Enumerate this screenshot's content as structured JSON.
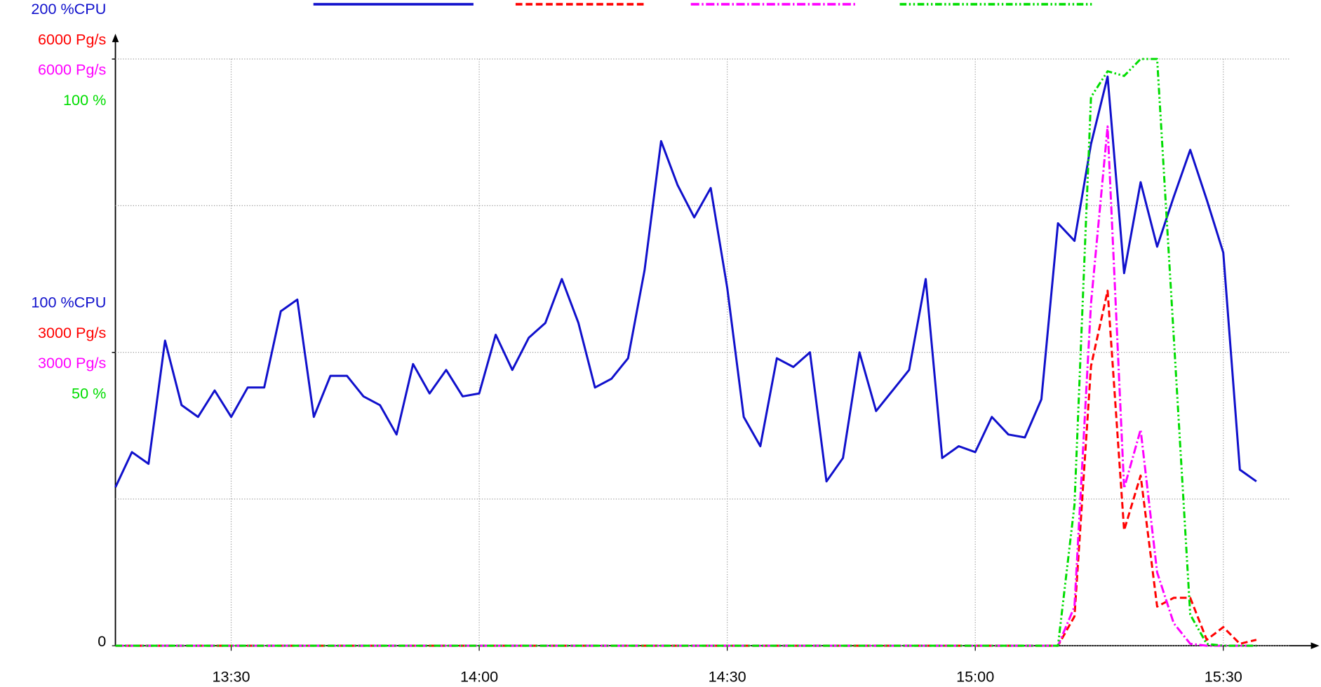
{
  "chart_data": {
    "type": "line",
    "x": [
      796,
      798,
      800,
      802,
      804,
      806,
      808,
      810,
      812,
      814,
      816,
      818,
      820,
      822,
      824,
      826,
      828,
      830,
      832,
      834,
      836,
      838,
      840,
      842,
      844,
      846,
      848,
      850,
      852,
      854,
      856,
      858,
      860,
      862,
      864,
      866,
      868,
      870,
      872,
      874,
      876,
      878,
      880,
      882,
      884,
      886,
      888,
      890,
      892,
      894,
      896,
      898,
      900,
      902,
      904,
      906,
      908,
      910,
      912,
      914,
      916,
      918,
      920,
      922,
      924,
      926,
      928,
      930,
      932,
      934
    ],
    "xlim": [
      796,
      941
    ],
    "xticks": [
      {
        "value": 810,
        "label": "13:30"
      },
      {
        "value": 840,
        "label": "14:00"
      },
      {
        "value": 870,
        "label": "14:30"
      },
      {
        "value": 900,
        "label": "15:00"
      },
      {
        "value": 930,
        "label": "15:30"
      }
    ],
    "grid": true,
    "y_axes": [
      {
        "ylim": [
          0,
          200
        ],
        "yticks": [
          0,
          {
            "value": 100,
            "label": "100 %CPU"
          },
          {
            "value": 200,
            "label": "200 %CPU"
          }
        ],
        "ygrid": [
          0,
          50,
          100,
          150,
          200
        ]
      },
      {
        "ylim": [
          0,
          6000
        ],
        "yticks": [
          {
            "value": 3000,
            "label": "3000 Pg/s"
          },
          {
            "value": 6000,
            "label": "6000 Pg/s"
          }
        ]
      },
      {
        "ylim": [
          0,
          6000
        ],
        "yticks": [
          {
            "value": 3000,
            "label": "3000 Pg/s"
          },
          {
            "value": 6000,
            "label": "6000 Pg/s"
          }
        ]
      },
      {
        "ylim": [
          0,
          100
        ],
        "yticks": [
          {
            "value": 50,
            "label": "50 %"
          },
          {
            "value": 100,
            "label": "100 %"
          }
        ]
      }
    ],
    "series": [
      {
        "color": "#1010cc",
        "dash": "none",
        "axis": 0,
        "values": [
          54,
          66,
          62,
          104,
          82,
          78,
          87,
          78,
          88,
          88,
          114,
          118,
          78,
          92,
          92,
          85,
          82,
          72,
          96,
          86,
          94,
          85,
          86,
          106,
          94,
          105,
          110,
          125,
          110,
          88,
          91,
          98,
          128,
          172,
          157,
          146,
          156,
          122,
          78,
          68,
          98,
          95,
          100,
          56,
          64,
          100,
          80,
          87,
          94,
          125,
          64,
          68,
          66,
          78,
          72,
          71,
          84,
          144,
          138,
          171,
          194,
          127,
          158,
          136,
          153,
          169,
          152,
          134,
          60,
          56
        ]
      },
      {
        "color": "#ff0000",
        "dash": "8,4",
        "axis": 1,
        "values": [
          0,
          0,
          0,
          0,
          0,
          0,
          0,
          0,
          0,
          0,
          0,
          0,
          0,
          0,
          0,
          0,
          0,
          0,
          0,
          0,
          0,
          0,
          0,
          0,
          0,
          0,
          0,
          0,
          0,
          0,
          0,
          0,
          0,
          0,
          0,
          0,
          0,
          0,
          0,
          0,
          0,
          0,
          0,
          0,
          0,
          0,
          0,
          0,
          0,
          0,
          0,
          0,
          0,
          0,
          0,
          0,
          0,
          0,
          300,
          2860,
          3630,
          1180,
          1740,
          400,
          490,
          490,
          60,
          190,
          20,
          60
        ]
      },
      {
        "color": "#ff00ff",
        "dash": "10,3,2,3",
        "axis": 2,
        "values": [
          0,
          0,
          0,
          0,
          0,
          0,
          0,
          0,
          0,
          0,
          0,
          0,
          0,
          0,
          0,
          0,
          0,
          0,
          0,
          0,
          0,
          0,
          0,
          0,
          0,
          0,
          0,
          0,
          0,
          0,
          0,
          0,
          0,
          0,
          0,
          0,
          0,
          0,
          0,
          0,
          0,
          0,
          0,
          0,
          0,
          0,
          0,
          0,
          0,
          0,
          0,
          0,
          0,
          0,
          0,
          0,
          0,
          0,
          400,
          3500,
          5310,
          1610,
          2210,
          750,
          230,
          20,
          0,
          0,
          0,
          0
        ]
      },
      {
        "color": "#00dd00",
        "dash": "8,3,2,3,2,3",
        "axis": 3,
        "values": [
          0,
          0,
          0,
          0,
          0,
          0,
          0,
          0,
          0,
          0,
          0,
          0,
          0,
          0,
          0,
          0,
          0,
          0,
          0,
          0,
          0,
          0,
          0,
          0,
          0,
          0,
          0,
          0,
          0,
          0,
          0,
          0,
          0,
          0,
          0,
          0,
          0,
          0,
          0,
          0,
          0,
          0,
          0,
          0,
          0,
          0,
          0,
          0,
          0,
          0,
          0,
          0,
          0,
          0,
          0,
          0,
          0,
          0,
          24,
          93.5,
          97.9,
          97.1,
          100,
          100,
          52.7,
          5.3,
          0.3,
          0,
          0,
          0
        ]
      }
    ]
  }
}
